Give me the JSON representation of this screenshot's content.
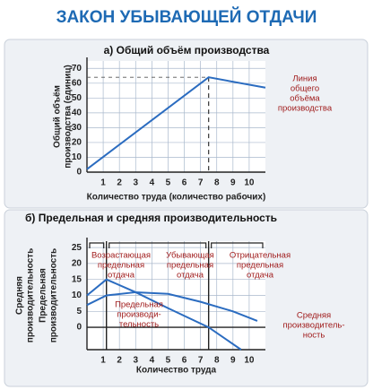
{
  "title": "ЗАКОН УБЫВАЮЩЕЙ ОТДАЧИ",
  "chart_data": [
    {
      "type": "line",
      "title": "а) Общий объём производства",
      "xlabel": "Количество труда (количество рабочих)",
      "ylabel": [
        "Общий объём",
        "производства (единиц)"
      ],
      "xlim": [
        0,
        11
      ],
      "ylim": [
        0,
        75
      ],
      "xticks": [
        1,
        2,
        3,
        4,
        5,
        6,
        7,
        8,
        9,
        10
      ],
      "yticks": [
        0,
        10,
        20,
        30,
        40,
        50,
        60,
        70
      ],
      "grid": true,
      "series": [
        {
          "name": [
            "Линия",
            "общего",
            "объёма",
            "производства"
          ],
          "color": "#2b6cc0",
          "x": [
            0,
            7.5,
            11
          ],
          "values": [
            2,
            64,
            57
          ]
        }
      ]
    },
    {
      "type": "line",
      "title": "б) Предельная и средняя производительность",
      "xlabel": "Количество труда",
      "ylabel": [
        "Средняя",
        "производительность",
        "Предельная",
        "производительность"
      ],
      "xlim": [
        0,
        11
      ],
      "ylim": [
        -7,
        27
      ],
      "xticks": [
        1,
        2,
        3,
        4,
        5,
        6,
        7,
        8,
        9,
        10
      ],
      "yticks": [
        0,
        5,
        10,
        15,
        20,
        25
      ],
      "grid": true,
      "zones": [
        {
          "label": [
            "Возрастающая",
            "предельная",
            "отдача"
          ],
          "from": 0,
          "to": 1.2
        },
        {
          "label": [
            "Убывающая",
            "предельная",
            "отдача"
          ],
          "from": 1.2,
          "to": 7.5
        },
        {
          "label": [
            "Отрицательная",
            "предельная",
            "отдача"
          ],
          "from": 7.5,
          "to": 11
        }
      ],
      "series": [
        {
          "name": [
            "Предельная",
            "производи-",
            "тельность"
          ],
          "color": "#2b6cc0",
          "x": [
            0,
            1.2,
            3,
            5,
            7.5,
            9.5
          ],
          "values": [
            10,
            15,
            11,
            6,
            0,
            -7
          ]
        },
        {
          "name": [
            "Средняя",
            "производитель-",
            "ность"
          ],
          "color": "#2b6cc0",
          "x": [
            0,
            1.2,
            3,
            5,
            7,
            9,
            10.5
          ],
          "values": [
            7,
            10,
            11,
            10.5,
            8,
            5,
            2
          ]
        }
      ]
    }
  ]
}
